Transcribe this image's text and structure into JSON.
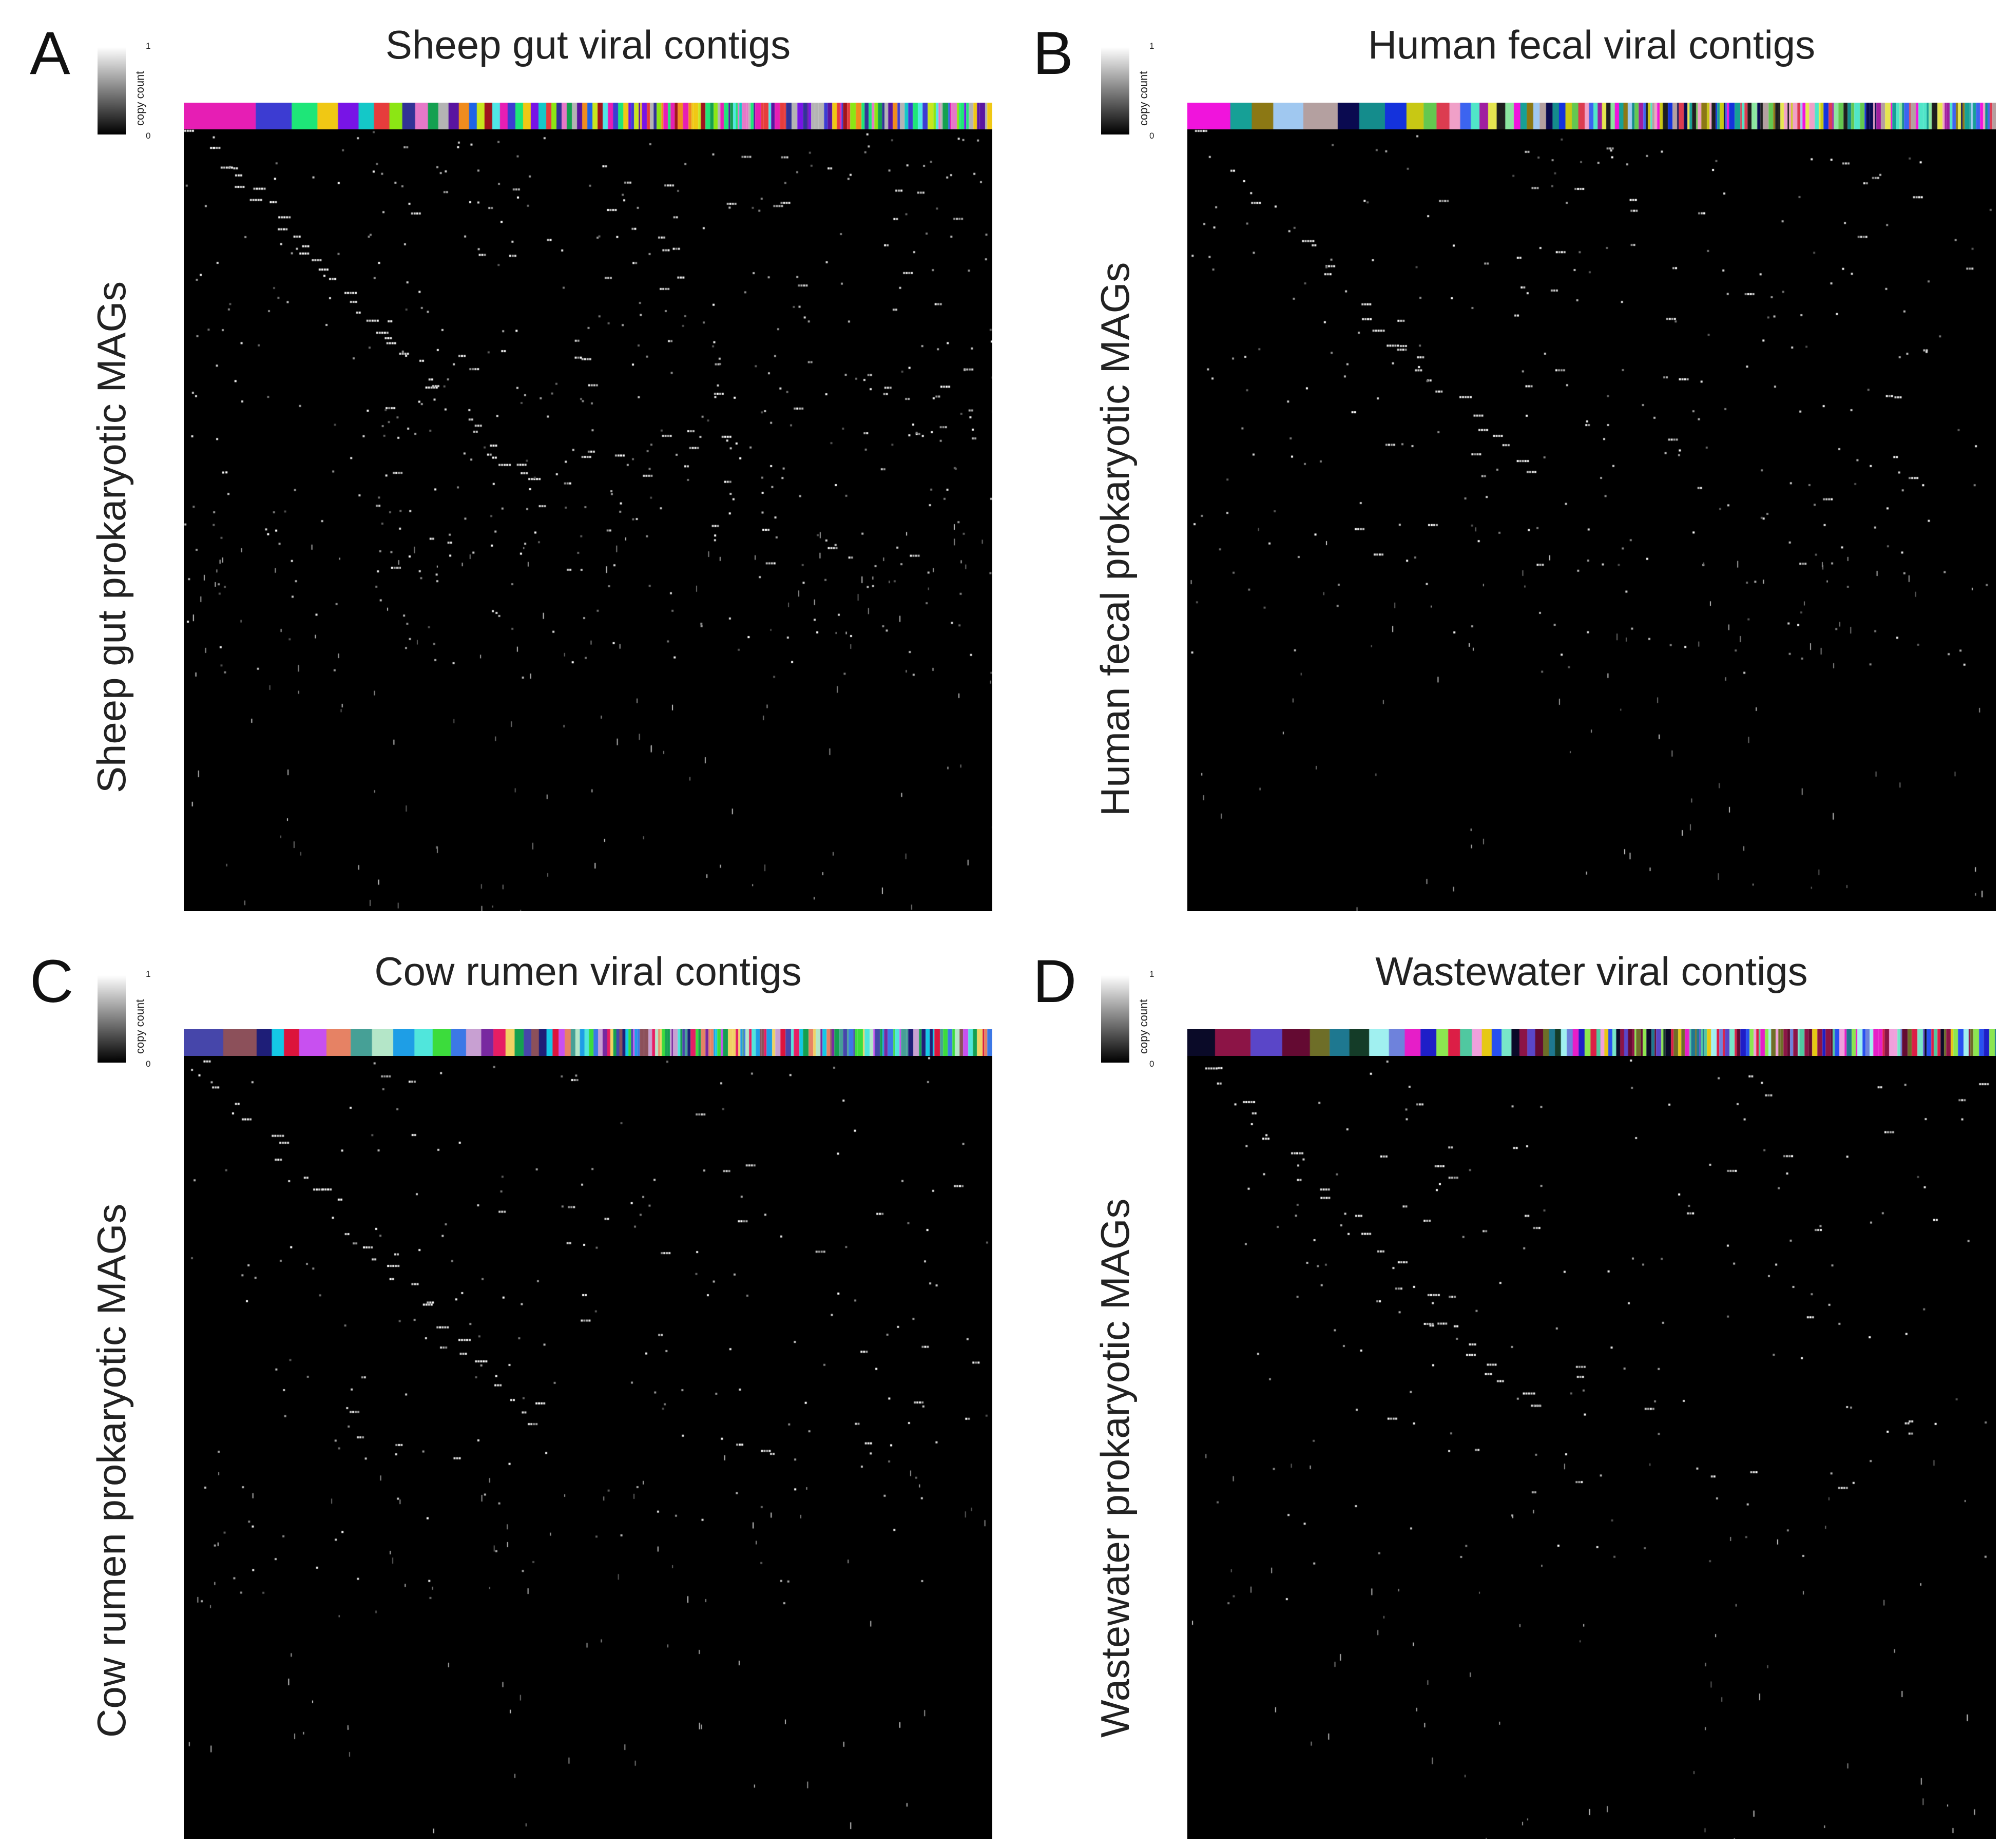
{
  "colorbar": {
    "min_label": "0",
    "max_label": "1",
    "label": "copy count",
    "low_color": "#000000",
    "high_color": "#ffffff"
  },
  "chart_data": [
    {
      "type": "heatmap",
      "panel": "A",
      "title": "Sheep gut viral contigs",
      "ylabel": "Sheep gut prokaryotic MAGs",
      "value_range": [
        0,
        1
      ],
      "background_value": 0,
      "seed": 11,
      "strip_palette": [
        "#e61eb4",
        "#3c3cd2",
        "#1ee678",
        "#f0c814",
        "#7814e6",
        "#14c8c8",
        "#e63c3c",
        "#8ce614",
        "#323296",
        "#e678c8",
        "#14a050",
        "#b4b4b4",
        "#5a14a0",
        "#f08c1e",
        "#1e64e6",
        "#c8e61e",
        "#a0141e",
        "#50e6e6"
      ],
      "strip_blocks": [
        28,
        14,
        10,
        8,
        8,
        6,
        6,
        5,
        5,
        5,
        4,
        4,
        4,
        4,
        3,
        3,
        3,
        3,
        3,
        3,
        3,
        3,
        3,
        3,
        2,
        2,
        2,
        2,
        2,
        2,
        2,
        2,
        2,
        2,
        2,
        2,
        2,
        2,
        2,
        2
      ],
      "cells": {
        "diagonal": 45,
        "clusters": 110,
        "scatter": 420,
        "scatter_lower": 140
      }
    },
    {
      "type": "heatmap",
      "panel": "B",
      "title": "Human fecal viral contigs",
      "ylabel": "Human fecal prokaryotic MAGs",
      "value_range": [
        0,
        1
      ],
      "background_value": 0,
      "seed": 23,
      "strip_palette": [
        "#f014dc",
        "#16a096",
        "#8c7814",
        "#a0c8f0",
        "#b4a0a0",
        "#0a0a50",
        "#148c8c",
        "#1432dc",
        "#c8c814",
        "#64c850",
        "#dc3c50",
        "#f0a0c8",
        "#3c64f0",
        "#50e6c8",
        "#a01ea0",
        "#e6e650",
        "#1e1e1e",
        "#8ce6a0"
      ],
      "strip_blocks": [
        20,
        10,
        10,
        14,
        16,
        10,
        12,
        10,
        8,
        6,
        6,
        5,
        5,
        4,
        4,
        4,
        4,
        4,
        3,
        3,
        3,
        3,
        3,
        3,
        3,
        3,
        3,
        3,
        3,
        2,
        2,
        2,
        2,
        2,
        2,
        2,
        2,
        2,
        2,
        2
      ],
      "cells": {
        "diagonal": 28,
        "clusters": 70,
        "scatter": 230,
        "scatter_lower": 90
      }
    },
    {
      "type": "heatmap",
      "panel": "C",
      "title": "Cow rumen viral contigs",
      "ylabel": "Cow rumen prokaryotic MAGs",
      "value_range": [
        0,
        1
      ],
      "background_value": 0,
      "seed": 37,
      "strip_palette": [
        "#4646aa",
        "#8c505a",
        "#1e1e78",
        "#14c8e6",
        "#dc143c",
        "#c850f0",
        "#e68264",
        "#46a096",
        "#b4e6c8",
        "#1e9ee6",
        "#50e6dc",
        "#3cdc3c",
        "#3c78e6",
        "#c8a0d2",
        "#7828a0",
        "#e61e64",
        "#f0d264",
        "#14a050"
      ],
      "strip_blocks": [
        26,
        22,
        10,
        8,
        10,
        18,
        16,
        14,
        14,
        14,
        12,
        12,
        10,
        10,
        8,
        8,
        6,
        6,
        5,
        5,
        5,
        4,
        4,
        4,
        4,
        3,
        3,
        3,
        3,
        3,
        3,
        3,
        3,
        2,
        2,
        2,
        2,
        2,
        2,
        2
      ],
      "cells": {
        "diagonal": 30,
        "clusters": 60,
        "scatter": 180,
        "scatter_lower": 80
      }
    },
    {
      "type": "heatmap",
      "panel": "D",
      "title": "Wastewater viral contigs",
      "ylabel": "Wastewater prokaryotic MAGs",
      "value_range": [
        0,
        1
      ],
      "background_value": 0,
      "seed": 53,
      "strip_palette": [
        "#0a0a28",
        "#8c1446",
        "#5a46c8",
        "#640a32",
        "#6e6e28",
        "#1e7890",
        "#143c28",
        "#a0f0f0",
        "#6e82dc",
        "#e61ec8",
        "#1e1ec8",
        "#8ce650",
        "#dc1e46",
        "#50c8a0",
        "#f0a0dc",
        "#e6c814",
        "#2850f0",
        "#78e6c8"
      ],
      "strip_blocks": [
        14,
        18,
        16,
        14,
        10,
        10,
        10,
        10,
        8,
        8,
        8,
        6,
        6,
        6,
        5,
        5,
        5,
        5,
        4,
        4,
        4,
        4,
        3,
        3,
        3,
        3,
        3,
        3,
        3,
        3,
        3,
        2,
        2,
        2,
        2,
        2,
        2,
        2,
        2,
        2
      ],
      "cells": {
        "diagonal": 32,
        "clusters": 60,
        "scatter": 130,
        "scatter_lower": 70
      }
    }
  ]
}
